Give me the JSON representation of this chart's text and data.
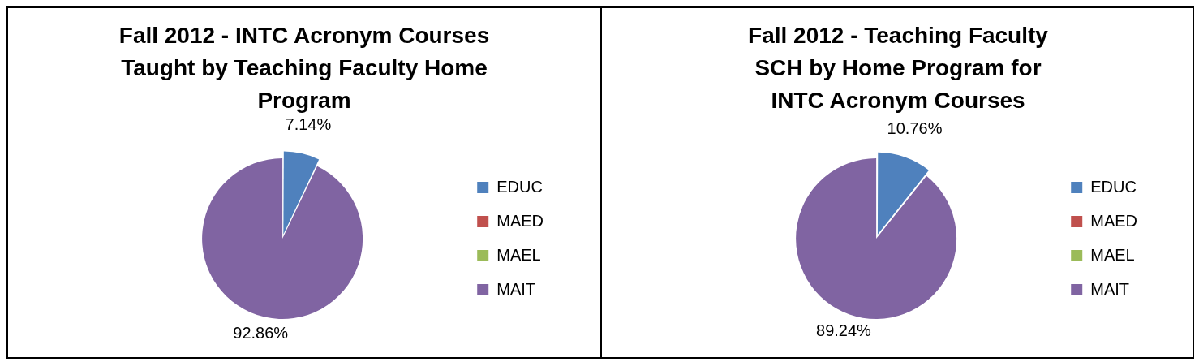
{
  "chart_data": [
    {
      "type": "pie",
      "title": "Fall 2012 - INTC Acronym Courses Taught by Teaching Faculty Home Program",
      "categories": [
        "EDUC",
        "MAED",
        "MAEL",
        "MAIT"
      ],
      "values": [
        7.14,
        0,
        0,
        92.86
      ],
      "colors": [
        "#4f81bd",
        "#c0504d",
        "#9bbb59",
        "#8064a2"
      ],
      "value_labels": [
        "7.14%",
        null,
        null,
        "92.86%"
      ],
      "legend": "right"
    },
    {
      "type": "pie",
      "title": "Fall 2012 - Teaching Faculty SCH by Home Program for INTC Acronym Courses",
      "categories": [
        "EDUC",
        "MAED",
        "MAEL",
        "MAIT"
      ],
      "values": [
        10.76,
        0,
        0,
        89.24
      ],
      "colors": [
        "#4f81bd",
        "#c0504d",
        "#9bbb59",
        "#8064a2"
      ],
      "value_labels": [
        "10.76%",
        null,
        null,
        "89.24%"
      ],
      "legend": "right"
    }
  ]
}
